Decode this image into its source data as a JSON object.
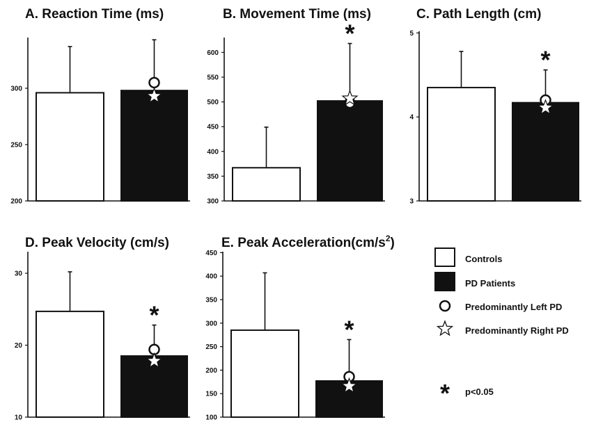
{
  "chart_data": [
    {
      "type": "bar",
      "title": "A. Reaction Time (ms)",
      "categories": [
        "Controls",
        "PD Patients"
      ],
      "values": [
        296,
        298
      ],
      "error_upper": [
        337,
        343
      ],
      "ylim": [
        200,
        345
      ],
      "yticks": [
        "200",
        "250",
        "300"
      ],
      "ytick_values": [
        200,
        250,
        300
      ],
      "left_pd": 305,
      "right_pd": 293,
      "significant": false
    },
    {
      "type": "bar",
      "title": "B. Movement Time (ms)",
      "categories": [
        "Controls",
        "PD Patients"
      ],
      "values": [
        367,
        502
      ],
      "error_upper": [
        449,
        618
      ],
      "ylim": [
        300,
        630
      ],
      "yticks": [
        "300",
        "350",
        "400",
        "450",
        "500",
        "550",
        "600"
      ],
      "ytick_values": [
        300,
        350,
        400,
        450,
        500,
        550,
        600
      ],
      "left_pd": 498,
      "right_pd": 507,
      "significant": true
    },
    {
      "type": "bar",
      "title": "C. Path Length (cm)",
      "categories": [
        "Controls",
        "PD Patients"
      ],
      "values": [
        4.35,
        4.17
      ],
      "error_upper": [
        4.78,
        4.56
      ],
      "ylim": [
        3,
        5.02
      ],
      "yticks": [
        "3",
        "4",
        "5"
      ],
      "ytick_values": [
        3,
        4,
        5
      ],
      "left_pd": 4.2,
      "right_pd": 4.11,
      "significant": true
    },
    {
      "type": "bar",
      "title": "D. Peak Velocity (cm/s)",
      "categories": [
        "Controls",
        "PD Patients"
      ],
      "values": [
        24.7,
        18.5
      ],
      "error_upper": [
        30.2,
        22.8
      ],
      "ylim": [
        10,
        33
      ],
      "yticks": [
        "10",
        "20",
        "30"
      ],
      "ytick_values": [
        10,
        20,
        30
      ],
      "left_pd": 19.4,
      "right_pd": 17.8,
      "significant": true
    },
    {
      "type": "bar",
      "title": "E. Peak Acceleration(cm/s",
      "title_sup": "2",
      "title_suffix": ")",
      "categories": [
        "Controls",
        "PD Patients"
      ],
      "values": [
        285,
        177
      ],
      "error_upper": [
        407,
        265
      ],
      "ylim": [
        100,
        452
      ],
      "yticks": [
        "100",
        "150",
        "200",
        "250",
        "300",
        "350",
        "400",
        "450"
      ],
      "ytick_values": [
        100,
        150,
        200,
        250,
        300,
        350,
        400,
        450
      ],
      "left_pd": 186,
      "right_pd": 166,
      "significant": true
    }
  ],
  "legend": {
    "controls": "Controls",
    "pd_patients": "PD Patients",
    "left_pd": "Predominantly Left PD",
    "right_pd": "Predominantly Right PD",
    "significance": "p<0.05",
    "significance_symbol": "*"
  },
  "colors": {
    "controls_fill": "#ffffff",
    "pd_fill": "#111111",
    "stroke": "#111111"
  }
}
